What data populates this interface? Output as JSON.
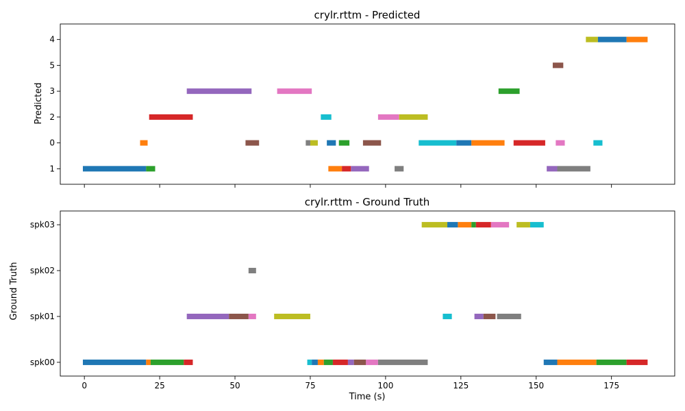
{
  "chart_data": [
    {
      "type": "timeline",
      "title": "crylr.rttm - Predicted",
      "ylabel": "Predicted",
      "xlabel": "",
      "xlim": [
        -8,
        196
      ],
      "x_ticks": [
        0,
        25,
        50,
        75,
        100,
        125,
        150,
        175
      ],
      "show_x_ticklabels": false,
      "grid": false,
      "categories": [
        "1",
        "0",
        "2",
        "3",
        "5",
        "4"
      ],
      "segments": [
        {
          "speaker": "1",
          "start": -0.5,
          "end": 20.5,
          "color": "#1f77b4"
        },
        {
          "speaker": "1",
          "start": 20.5,
          "end": 23.5,
          "color": "#2ca02c"
        },
        {
          "speaker": "0",
          "start": 18.5,
          "end": 21,
          "color": "#ff7f0e"
        },
        {
          "speaker": "2",
          "start": 21.5,
          "end": 36,
          "color": "#d62728"
        },
        {
          "speaker": "3",
          "start": 34,
          "end": 55.5,
          "color": "#9467bd"
        },
        {
          "speaker": "0",
          "start": 53.5,
          "end": 58,
          "color": "#8c564b"
        },
        {
          "speaker": "3",
          "start": 64,
          "end": 75.5,
          "color": "#e377c2"
        },
        {
          "speaker": "0",
          "start": 73.5,
          "end": 75,
          "color": "#7f7f7f"
        },
        {
          "speaker": "0",
          "start": 75,
          "end": 77.5,
          "color": "#bcbd22"
        },
        {
          "speaker": "2",
          "start": 78.5,
          "end": 82,
          "color": "#17becf"
        },
        {
          "speaker": "0",
          "start": 80.5,
          "end": 83.5,
          "color": "#1f77b4"
        },
        {
          "speaker": "1",
          "start": 81,
          "end": 85.5,
          "color": "#ff7f0e"
        },
        {
          "speaker": "0",
          "start": 84.5,
          "end": 88,
          "color": "#2ca02c"
        },
        {
          "speaker": "1",
          "start": 85.5,
          "end": 88.5,
          "color": "#d62728"
        },
        {
          "speaker": "1",
          "start": 88.5,
          "end": 94.5,
          "color": "#9467bd"
        },
        {
          "speaker": "0",
          "start": 92.5,
          "end": 98.5,
          "color": "#8c564b"
        },
        {
          "speaker": "2",
          "start": 97.5,
          "end": 104.5,
          "color": "#e377c2"
        },
        {
          "speaker": "1",
          "start": 103,
          "end": 106,
          "color": "#7f7f7f"
        },
        {
          "speaker": "2",
          "start": 104.5,
          "end": 114,
          "color": "#bcbd22"
        },
        {
          "speaker": "0",
          "start": 111,
          "end": 123.5,
          "color": "#17becf"
        },
        {
          "speaker": "0",
          "start": 123.5,
          "end": 128.5,
          "color": "#1f77b4"
        },
        {
          "speaker": "0",
          "start": 128.5,
          "end": 139.5,
          "color": "#ff7f0e"
        },
        {
          "speaker": "3",
          "start": 137.5,
          "end": 144.5,
          "color": "#2ca02c"
        },
        {
          "speaker": "0",
          "start": 142.5,
          "end": 153,
          "color": "#d62728"
        },
        {
          "speaker": "1",
          "start": 153.5,
          "end": 157,
          "color": "#9467bd"
        },
        {
          "speaker": "5",
          "start": 155.5,
          "end": 159,
          "color": "#8c564b"
        },
        {
          "speaker": "0",
          "start": 156.5,
          "end": 159.5,
          "color": "#e377c2"
        },
        {
          "speaker": "1",
          "start": 157,
          "end": 168,
          "color": "#7f7f7f"
        },
        {
          "speaker": "4",
          "start": 166.5,
          "end": 170.5,
          "color": "#bcbd22"
        },
        {
          "speaker": "0",
          "start": 169,
          "end": 172,
          "color": "#17becf"
        },
        {
          "speaker": "4",
          "start": 170.5,
          "end": 180,
          "color": "#1f77b4"
        },
        {
          "speaker": "4",
          "start": 180,
          "end": 187,
          "color": "#ff7f0e"
        }
      ]
    },
    {
      "type": "timeline",
      "title": "crylr.rttm - Ground Truth",
      "ylabel": "Ground Truth",
      "xlabel": "Time (s)",
      "xlim": [
        -8,
        196
      ],
      "x_ticks": [
        0,
        25,
        50,
        75,
        100,
        125,
        150,
        175
      ],
      "show_x_ticklabels": true,
      "grid": false,
      "categories": [
        "spk00",
        "spk01",
        "spk02",
        "spk03"
      ],
      "segments": [
        {
          "speaker": "spk00",
          "start": -0.5,
          "end": 20.5,
          "color": "#1f77b4"
        },
        {
          "speaker": "spk00",
          "start": 20.5,
          "end": 22,
          "color": "#ff7f0e"
        },
        {
          "speaker": "spk00",
          "start": 22,
          "end": 33,
          "color": "#2ca02c"
        },
        {
          "speaker": "spk00",
          "start": 33,
          "end": 36,
          "color": "#d62728"
        },
        {
          "speaker": "spk01",
          "start": 34,
          "end": 48,
          "color": "#9467bd"
        },
        {
          "speaker": "spk01",
          "start": 48,
          "end": 54.5,
          "color": "#8c564b"
        },
        {
          "speaker": "spk01",
          "start": 54.5,
          "end": 57,
          "color": "#e377c2"
        },
        {
          "speaker": "spk02",
          "start": 54.5,
          "end": 57,
          "color": "#7f7f7f"
        },
        {
          "speaker": "spk01",
          "start": 63,
          "end": 75,
          "color": "#bcbd22"
        },
        {
          "speaker": "spk00",
          "start": 74,
          "end": 75.5,
          "color": "#17becf"
        },
        {
          "speaker": "spk00",
          "start": 75.5,
          "end": 77.5,
          "color": "#1f77b4"
        },
        {
          "speaker": "spk00",
          "start": 77.5,
          "end": 79.5,
          "color": "#ff7f0e"
        },
        {
          "speaker": "spk00",
          "start": 79.5,
          "end": 82.5,
          "color": "#2ca02c"
        },
        {
          "speaker": "spk00",
          "start": 82.5,
          "end": 87.5,
          "color": "#d62728"
        },
        {
          "speaker": "spk00",
          "start": 87.5,
          "end": 89.5,
          "color": "#9467bd"
        },
        {
          "speaker": "spk00",
          "start": 89.5,
          "end": 93.5,
          "color": "#8c564b"
        },
        {
          "speaker": "spk00",
          "start": 93.5,
          "end": 97.5,
          "color": "#e377c2"
        },
        {
          "speaker": "spk00",
          "start": 97.5,
          "end": 114,
          "color": "#7f7f7f"
        },
        {
          "speaker": "spk03",
          "start": 112,
          "end": 120.5,
          "color": "#bcbd22"
        },
        {
          "speaker": "spk01",
          "start": 119,
          "end": 122,
          "color": "#17becf"
        },
        {
          "speaker": "spk03",
          "start": 120.5,
          "end": 124,
          "color": "#1f77b4"
        },
        {
          "speaker": "spk03",
          "start": 124,
          "end": 128.5,
          "color": "#ff7f0e"
        },
        {
          "speaker": "spk03",
          "start": 128.5,
          "end": 130,
          "color": "#2ca02c"
        },
        {
          "speaker": "spk03",
          "start": 130,
          "end": 135,
          "color": "#d62728"
        },
        {
          "speaker": "spk01",
          "start": 129.5,
          "end": 132.5,
          "color": "#9467bd"
        },
        {
          "speaker": "spk01",
          "start": 132.5,
          "end": 136.5,
          "color": "#8c564b"
        },
        {
          "speaker": "spk03",
          "start": 135,
          "end": 141,
          "color": "#e377c2"
        },
        {
          "speaker": "spk01",
          "start": 137,
          "end": 145,
          "color": "#7f7f7f"
        },
        {
          "speaker": "spk03",
          "start": 143.5,
          "end": 148,
          "color": "#bcbd22"
        },
        {
          "speaker": "spk03",
          "start": 148,
          "end": 152.5,
          "color": "#17becf"
        },
        {
          "speaker": "spk00",
          "start": 152.5,
          "end": 157,
          "color": "#1f77b4"
        },
        {
          "speaker": "spk00",
          "start": 157,
          "end": 170,
          "color": "#ff7f0e"
        },
        {
          "speaker": "spk00",
          "start": 170,
          "end": 180,
          "color": "#2ca02c"
        },
        {
          "speaker": "spk00",
          "start": 180,
          "end": 187,
          "color": "#d62728"
        }
      ]
    }
  ]
}
